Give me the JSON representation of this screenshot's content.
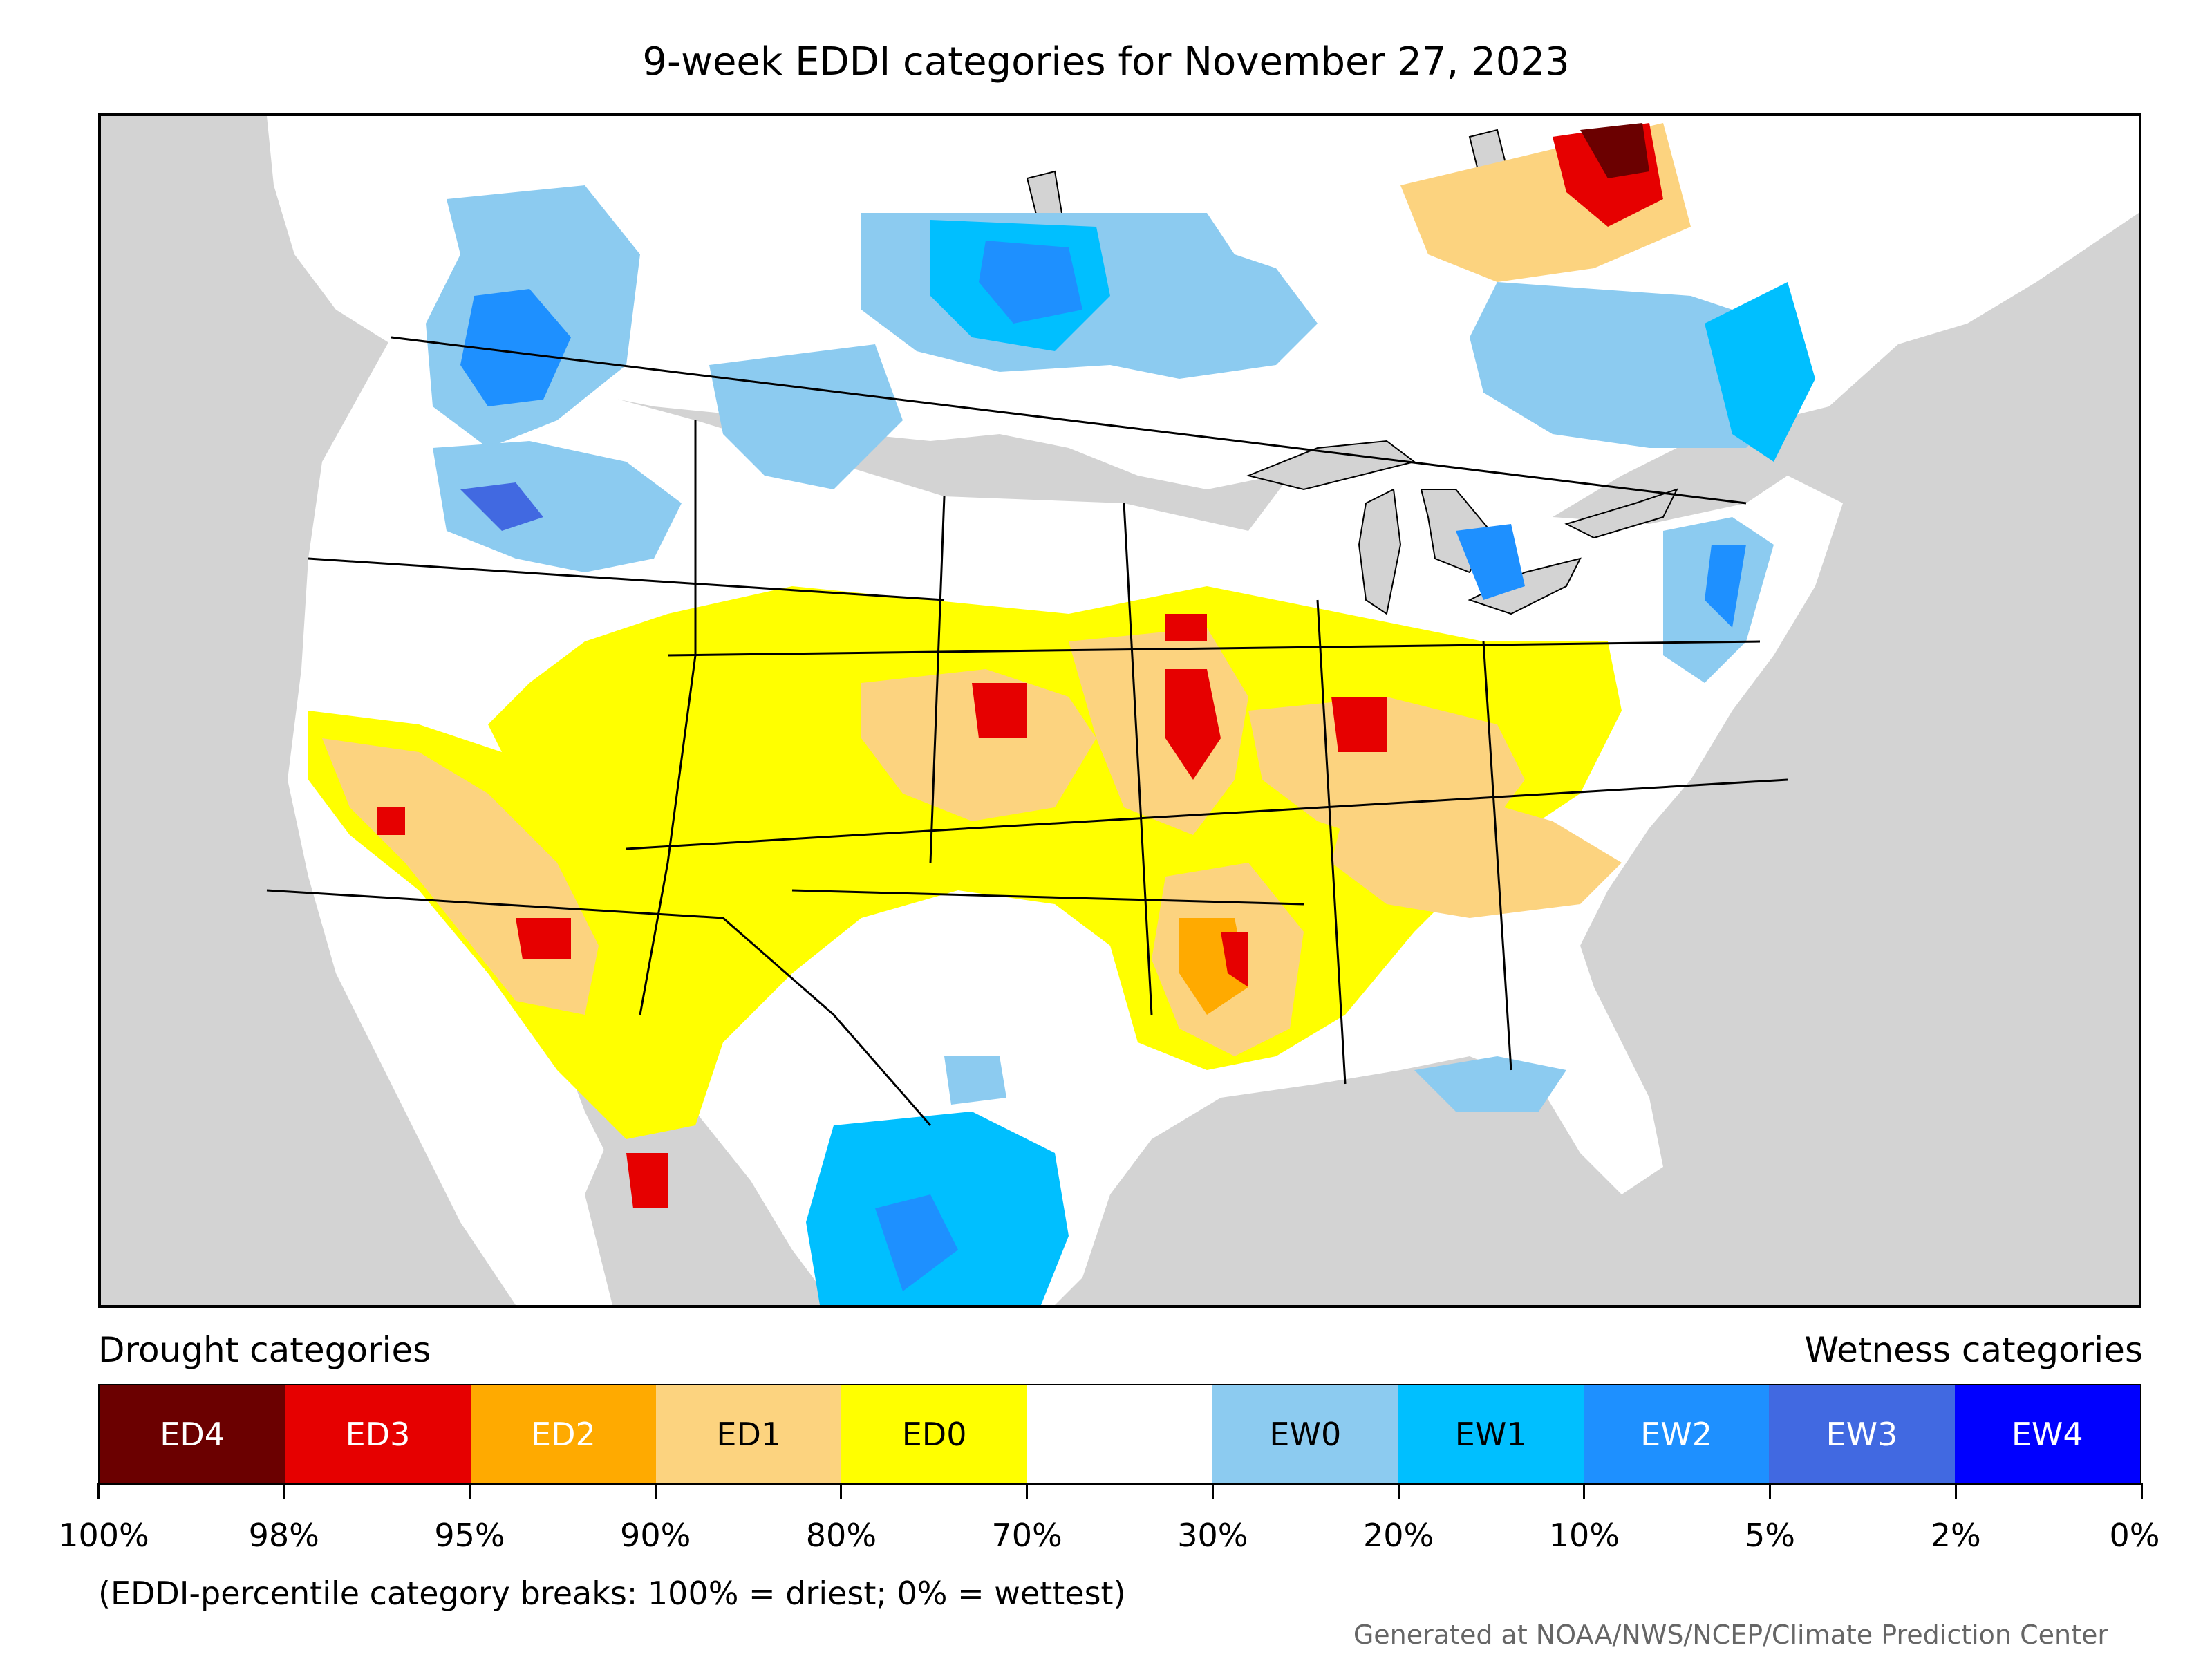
{
  "title": "9-week EDDI categories for November 27, 2023",
  "legend": {
    "left_heading": "Drought categories",
    "right_heading": "Wetness categories",
    "categories": [
      {
        "label": "ED4",
        "color": "#6b0000",
        "text_color": "#ffffff"
      },
      {
        "label": "ED3",
        "color": "#e60000",
        "text_color": "#ffffff"
      },
      {
        "label": "ED2",
        "color": "#ffaa00",
        "text_color": "#ffffff"
      },
      {
        "label": "ED1",
        "color": "#fcd37f",
        "text_color": "#000000"
      },
      {
        "label": "ED0",
        "color": "#ffff00",
        "text_color": "#000000"
      },
      {
        "label": "",
        "color": "#ffffff",
        "text_color": "#000000"
      },
      {
        "label": "EW0",
        "color": "#8ccbf0",
        "text_color": "#000000"
      },
      {
        "label": "EW1",
        "color": "#00bfff",
        "text_color": "#000000"
      },
      {
        "label": "EW2",
        "color": "#1e90ff",
        "text_color": "#ffffff"
      },
      {
        "label": "EW3",
        "color": "#4169e1",
        "text_color": "#ffffff"
      },
      {
        "label": "EW4",
        "color": "#0000ff",
        "text_color": "#ffffff"
      }
    ],
    "tick_labels": [
      "100%",
      "98%",
      "95%",
      "90%",
      "80%",
      "70%",
      "30%",
      "20%",
      "10%",
      "5%",
      "2%",
      "0%"
    ]
  },
  "note": "(EDDI-percentile category breaks: 100% = driest; 0% = wettest)",
  "credit": "Generated at NOAA/NWS/NCEP/Climate Prediction Center",
  "map": {
    "ocean_color": "#d3d3d3",
    "land_color": "#ffffff",
    "border_color": "#000000"
  }
}
